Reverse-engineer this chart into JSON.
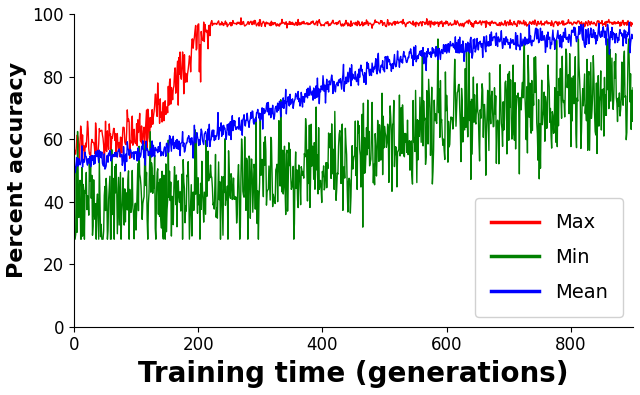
{
  "xlabel": "Training time (generations)",
  "ylabel": "Percent accuracy",
  "xlabel_fontsize": 20,
  "ylabel_fontsize": 16,
  "xlim": [
    0,
    900
  ],
  "ylim": [
    0,
    100
  ],
  "xticks": [
    0,
    200,
    400,
    600,
    800
  ],
  "yticks": [
    0,
    20,
    40,
    60,
    80,
    100
  ],
  "n_generations": 900,
  "max_color": "red",
  "min_color": "green",
  "mean_color": "blue",
  "legend_labels": [
    "Max",
    "Min",
    "Mean"
  ],
  "legend_colors": [
    "red",
    "green",
    "blue"
  ],
  "background_color": "white",
  "seed": 7
}
